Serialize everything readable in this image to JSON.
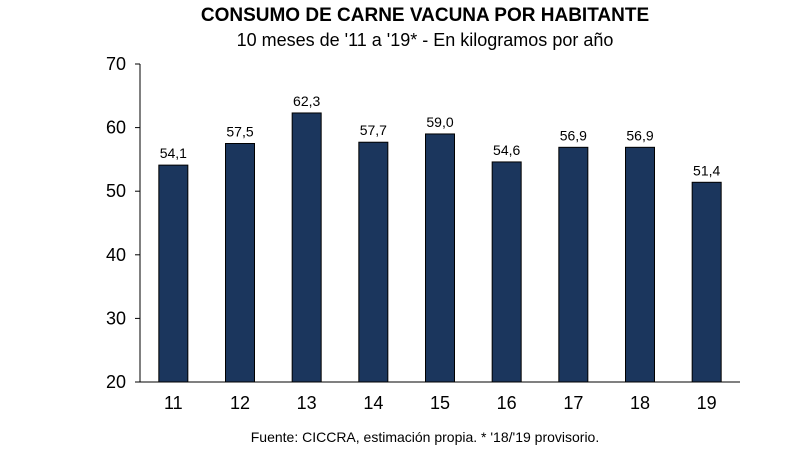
{
  "chart_data": {
    "type": "bar",
    "title": "CONSUMO DE CARNE VACUNA POR HABITANTE",
    "subtitle": "10 meses de '11 a '19* - En kilogramos por año",
    "categories": [
      "11",
      "12",
      "13",
      "14",
      "15",
      "16",
      "17",
      "18",
      "19"
    ],
    "values": [
      54.1,
      57.5,
      62.3,
      57.7,
      59.0,
      54.6,
      56.9,
      56.9,
      51.4
    ],
    "value_labels": [
      "54,1",
      "57,5",
      "62,3",
      "57,7",
      "59,0",
      "54,6",
      "56,9",
      "56,9",
      "51,4"
    ],
    "ylim": [
      20,
      70
    ],
    "yticks": [
      "20",
      "30",
      "40",
      "50",
      "60",
      "70"
    ],
    "grid": false,
    "legend": "none",
    "bar_color": "#1b365d",
    "source": "Fuente: CICCRA, estimación propia. * '18/'19 provisorio."
  }
}
